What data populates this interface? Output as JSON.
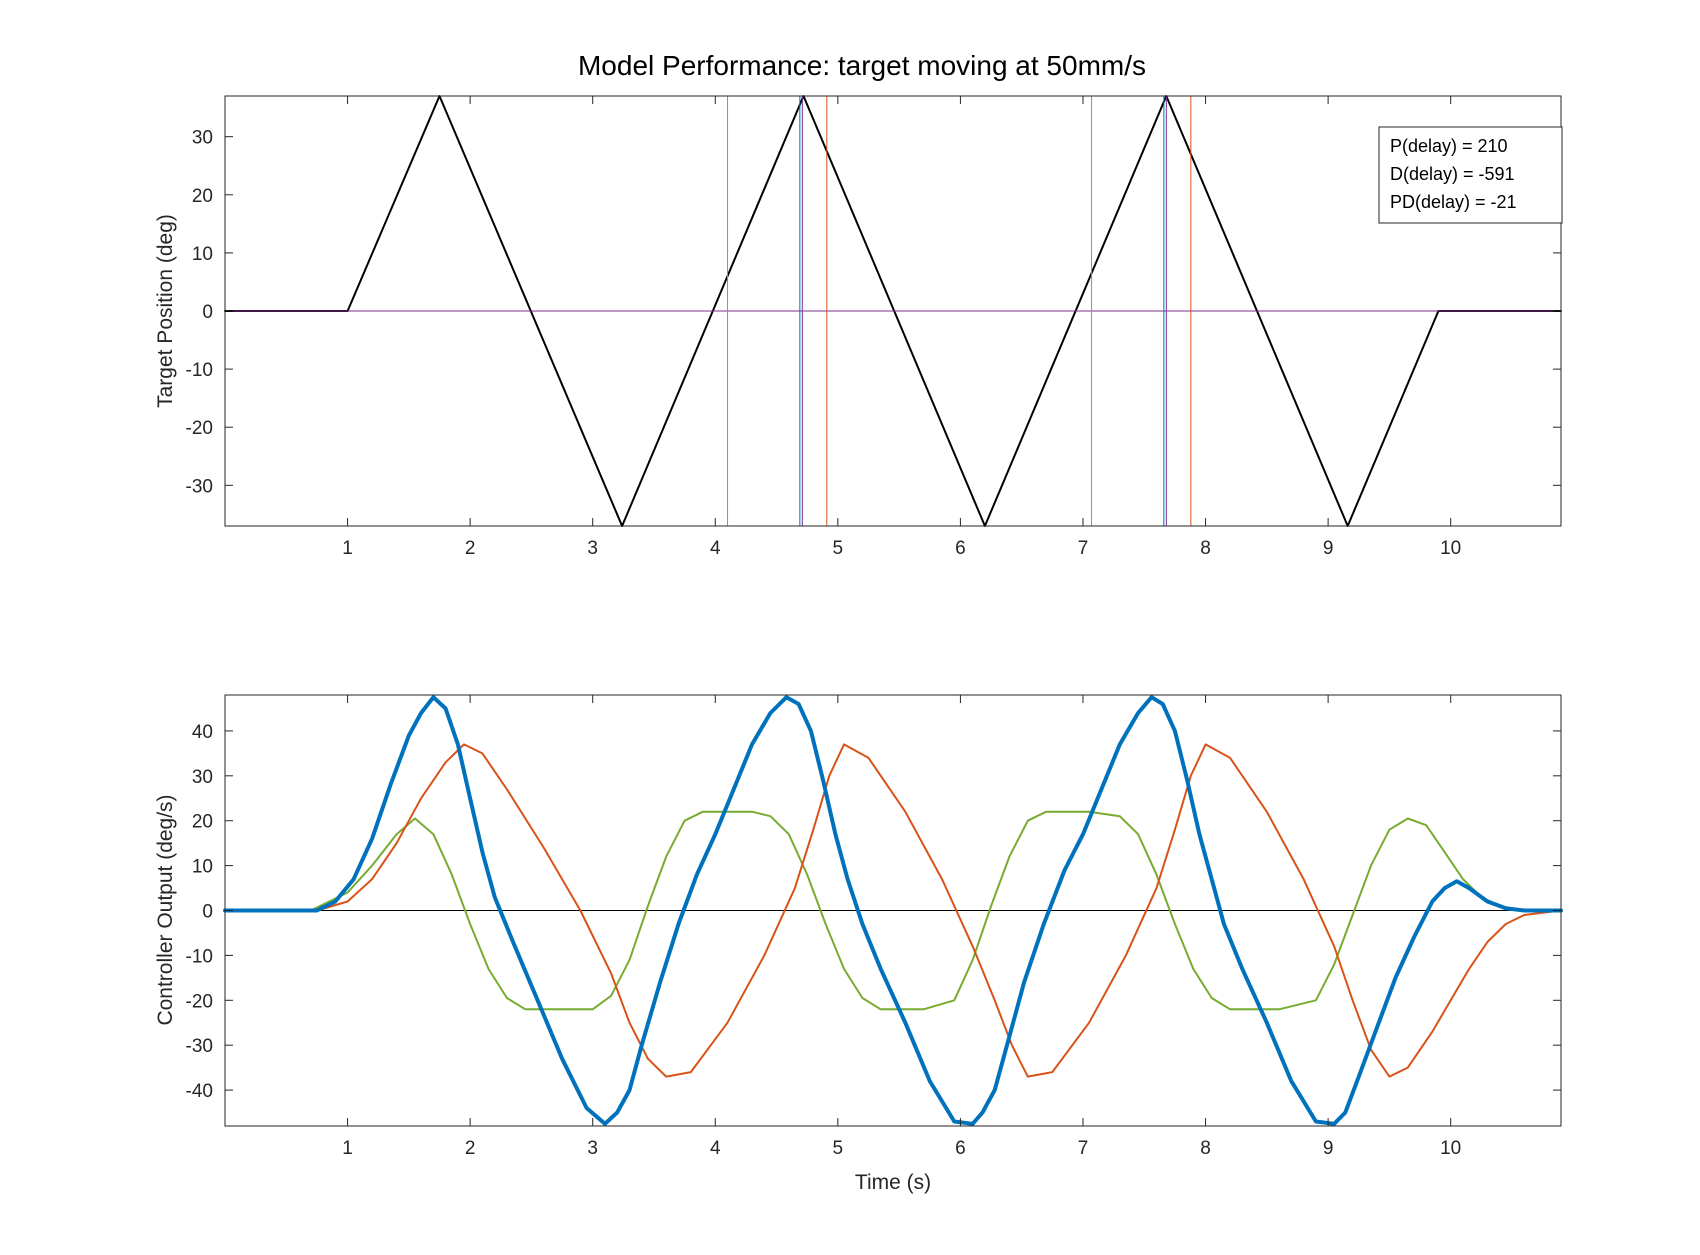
{
  "title": "Model Performance: target moving at 50mm/s",
  "chart_data": [
    {
      "type": "line",
      "id": "top",
      "xlabel": "",
      "ylabel": "Target Position (deg)",
      "xlim": [
        0,
        10.9
      ],
      "ylim": [
        -37,
        37
      ],
      "xticks": [
        1,
        2,
        3,
        4,
        5,
        6,
        7,
        8,
        9,
        10
      ],
      "yticks": [
        -30,
        -20,
        -10,
        0,
        10,
        20,
        30
      ],
      "annotation": [
        "P(delay) = 210",
        "D(delay) = -591",
        "PD(delay) = -21"
      ],
      "series": [
        {
          "color": "#000000",
          "width": 2,
          "x": [
            0,
            1.0,
            1.75,
            3.24,
            4.72,
            6.2,
            7.68,
            9.16,
            9.9,
            10.9
          ],
          "y": [
            0,
            0,
            37,
            -37,
            37,
            -37,
            37,
            -37,
            0,
            0
          ]
        },
        {
          "color": "#7E2F8E",
          "width": 1,
          "x": [
            0,
            10.9
          ],
          "y": [
            0,
            0
          ]
        }
      ],
      "vlines": [
        {
          "x": 4.1,
          "color": "#77AC30"
        },
        {
          "x": 4.69,
          "color": "#0072BD"
        },
        {
          "x": 4.71,
          "color": "#7E2F8E"
        },
        {
          "x": 4.91,
          "color": "#D95319"
        },
        {
          "x": 7.07,
          "color": "#77AC30"
        },
        {
          "x": 7.66,
          "color": "#0072BD"
        },
        {
          "x": 7.68,
          "color": "#7E2F8E"
        },
        {
          "x": 7.88,
          "color": "#D95319"
        }
      ]
    },
    {
      "type": "line",
      "id": "bottom",
      "xlabel": "Time (s)",
      "ylabel": "Controller Output (deg/s)",
      "xlim": [
        0,
        10.9
      ],
      "ylim": [
        -48,
        48
      ],
      "xticks": [
        1,
        2,
        3,
        4,
        5,
        6,
        7,
        8,
        9,
        10
      ],
      "yticks": [
        -40,
        -30,
        -20,
        -10,
        0,
        10,
        20,
        30,
        40
      ],
      "series": [
        {
          "color": "#000000",
          "width": 1,
          "x": [
            0,
            10.9
          ],
          "y": [
            0,
            0
          ]
        },
        {
          "color": "#77AC30",
          "width": 2,
          "x": [
            0,
            0.7,
            1.0,
            1.2,
            1.4,
            1.55,
            1.7,
            1.85,
            2.0,
            2.15,
            2.3,
            2.45,
            2.6,
            2.8,
            3.0,
            3.15,
            3.3,
            3.45,
            3.6,
            3.75,
            3.9,
            4.1,
            4.3,
            4.45,
            4.6,
            4.75,
            4.9,
            5.05,
            5.2,
            5.35,
            5.5,
            5.7,
            5.95,
            6.1,
            6.25,
            6.4,
            6.55,
            6.7,
            6.85,
            7.05,
            7.3,
            7.45,
            7.6,
            7.75,
            7.9,
            8.05,
            8.2,
            8.4,
            8.6,
            8.9,
            9.05,
            9.2,
            9.35,
            9.5,
            9.65,
            9.8,
            9.95,
            10.1,
            10.25,
            10.4,
            10.6,
            10.9
          ],
          "y": [
            0,
            0,
            4,
            10,
            17,
            20.5,
            17,
            8,
            -3,
            -13,
            -19.5,
            -22,
            -22,
            -22,
            -22,
            -19,
            -11,
            1,
            12,
            20,
            22,
            22,
            22,
            21,
            17,
            8,
            -3,
            -13,
            -19.5,
            -22,
            -22,
            -22,
            -20,
            -11,
            1,
            12,
            20,
            22,
            22,
            22,
            21,
            17,
            8,
            -3,
            -13,
            -19.5,
            -22,
            -22,
            -22,
            -20,
            -12,
            -1,
            10,
            18,
            20.5,
            19,
            13,
            7,
            3,
            1,
            0,
            0
          ]
        },
        {
          "color": "#D95319",
          "width": 2,
          "x": [
            0,
            0.75,
            1.0,
            1.2,
            1.4,
            1.6,
            1.8,
            1.95,
            2.1,
            2.3,
            2.6,
            2.9,
            3.15,
            3.3,
            3.45,
            3.6,
            3.8,
            4.1,
            4.4,
            4.65,
            4.8,
            4.93,
            5.05,
            5.25,
            5.55,
            5.85,
            6.1,
            6.28,
            6.42,
            6.55,
            6.75,
            7.05,
            7.35,
            7.6,
            7.75,
            7.88,
            8.0,
            8.2,
            8.5,
            8.8,
            9.05,
            9.2,
            9.35,
            9.5,
            9.65,
            9.85,
            10.0,
            10.15,
            10.3,
            10.45,
            10.6,
            10.9
          ],
          "y": [
            0,
            0,
            2,
            7,
            15,
            25,
            33,
            37,
            35,
            27,
            14,
            0,
            -14,
            -25,
            -33,
            -37,
            -36,
            -25,
            -10,
            5,
            18,
            30,
            37,
            34,
            22,
            7,
            -8,
            -20,
            -30,
            -37,
            -36,
            -25,
            -10,
            5,
            18,
            30,
            37,
            34,
            22,
            7,
            -8,
            -20,
            -31,
            -37,
            -35,
            -27,
            -20,
            -13,
            -7,
            -3,
            -1,
            0
          ]
        },
        {
          "color": "#0072BD",
          "width": 4,
          "x": [
            0,
            0.75,
            0.9,
            1.05,
            1.2,
            1.35,
            1.5,
            1.6,
            1.7,
            1.8,
            1.9,
            2.0,
            2.1,
            2.2,
            2.35,
            2.55,
            2.75,
            2.95,
            3.1,
            3.2,
            3.3,
            3.4,
            3.55,
            3.7,
            3.85,
            4.0,
            4.15,
            4.3,
            4.45,
            4.58,
            4.68,
            4.78,
            4.88,
            4.98,
            5.08,
            5.2,
            5.35,
            5.55,
            5.75,
            5.95,
            6.1,
            6.18,
            6.28,
            6.38,
            6.52,
            6.68,
            6.85,
            7.0,
            7.15,
            7.3,
            7.45,
            7.56,
            7.65,
            7.75,
            7.85,
            7.95,
            8.05,
            8.15,
            8.3,
            8.5,
            8.7,
            8.9,
            9.05,
            9.14,
            9.25,
            9.4,
            9.55,
            9.7,
            9.85,
            9.95,
            10.05,
            10.15,
            10.3,
            10.45,
            10.6,
            10.9
          ],
          "y": [
            0,
            0,
            2,
            7,
            16,
            28,
            39,
            44,
            47.5,
            45,
            37,
            25,
            13,
            3,
            -7,
            -20,
            -33,
            -44,
            -47.5,
            -45,
            -40,
            -30,
            -16,
            -3,
            8,
            17,
            27,
            37,
            44,
            47.5,
            46,
            40,
            29,
            17,
            7,
            -3,
            -13,
            -25,
            -38,
            -47,
            -47.5,
            -45,
            -40,
            -30,
            -16,
            -3,
            9,
            17,
            27,
            37,
            44,
            47.5,
            46,
            40,
            29,
            17,
            7,
            -3,
            -13,
            -25,
            -38,
            -47,
            -47.5,
            -45,
            -37,
            -26,
            -15,
            -6,
            2,
            5,
            6.5,
            5,
            2,
            0.5,
            0,
            0
          ]
        }
      ]
    }
  ]
}
